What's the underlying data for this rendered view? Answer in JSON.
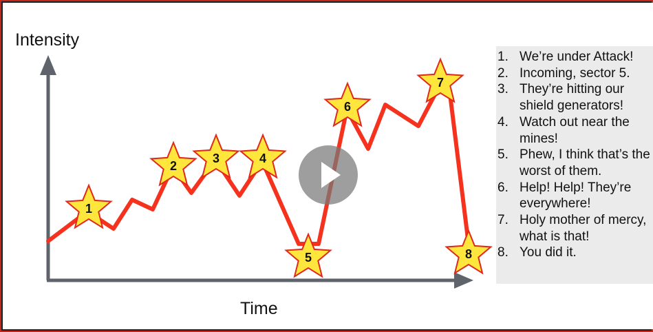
{
  "slide": {
    "y_axis_label": "Intensity",
    "x_axis_label": "Time"
  },
  "legend": {
    "items": [
      {
        "number": "1.",
        "text": "We’re under Attack!"
      },
      {
        "number": "2.",
        "text": "Incoming, sector 5."
      },
      {
        "number": "3.",
        "text": "They’re hitting our shield generators!"
      },
      {
        "number": "4.",
        "text": "Watch out near the mines!"
      },
      {
        "number": "5.",
        "text": "Phew, I think that’s the worst of them."
      },
      {
        "number": "6.",
        "text": "Help! Help! They’re everywhere!"
      },
      {
        "number": "7.",
        "text": "Holy mother of mercy, what is that!"
      },
      {
        "number": "8.",
        "text": "You did it."
      }
    ]
  },
  "chart_data": {
    "type": "line",
    "xlabel": "Time",
    "ylabel": "Intensity",
    "markers": [
      "1",
      "2",
      "3",
      "4",
      "5",
      "6",
      "7",
      "8"
    ]
  },
  "colors": {
    "line": "#f5321e",
    "axis": "#5f636b",
    "star_fill": "#ffe63c",
    "star_stroke": "#e0281c",
    "border": "#c0281e"
  },
  "player": {
    "control": "play-icon"
  }
}
